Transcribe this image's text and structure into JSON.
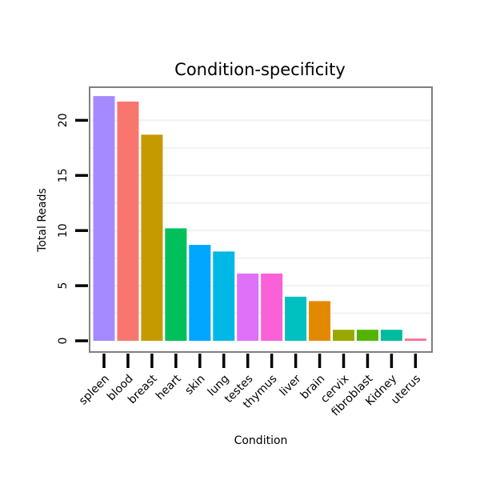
{
  "chart_data": {
    "type": "bar",
    "title": "Condition-specificity",
    "xlabel": "Condition",
    "ylabel": "Total Reads",
    "ylim": [
      0,
      22.5
    ],
    "yticks": [
      0,
      5,
      10,
      15,
      20
    ],
    "grid": true,
    "categories": [
      "spleen",
      "blood",
      "breast",
      "heart",
      "skin",
      "lung",
      "testes",
      "thymus",
      "liver",
      "brain",
      "cervix",
      "fibroblast",
      "Kidney",
      "uterus"
    ],
    "values": [
      22.2,
      21.7,
      18.7,
      10.2,
      8.7,
      8.1,
      6.1,
      6.1,
      4.0,
      3.6,
      1.0,
      1.0,
      1.0,
      0.2
    ],
    "colors": [
      "#a58aff",
      "#f8766d",
      "#c49a00",
      "#00c05c",
      "#00a6ff",
      "#00b8e5",
      "#df70f8",
      "#fb61d7",
      "#00c0c0",
      "#e38900",
      "#99a800",
      "#53b400",
      "#00bc9f",
      "#ff6c91"
    ]
  }
}
